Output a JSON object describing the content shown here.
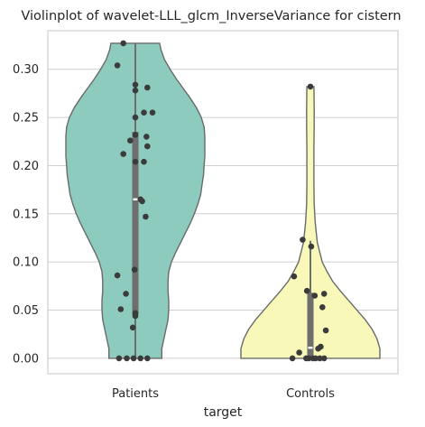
{
  "chart_data": {
    "type": "violin",
    "title": "Violinplot of wavelet-LLL_glcm_InverseVariance for cistern",
    "xlabel": "target",
    "ylabel": "",
    "ylim": [
      -0.016,
      0.34
    ],
    "yticks": [
      0.0,
      0.05,
      0.1,
      0.15,
      0.2,
      0.25,
      0.3
    ],
    "ytick_labels": [
      "0.00",
      "0.05",
      "0.10",
      "0.15",
      "0.20",
      "0.25",
      "0.30"
    ],
    "grid": "horizontal",
    "categories": [
      "Patients",
      "Controls"
    ],
    "colors": {
      "Patients": "#8ecbbf",
      "Controls": "#f8f8b8",
      "edge": "#6a6a6a",
      "box": "#6e6e6e",
      "points": "#3b3b3b",
      "grid": "#cfcfcf"
    },
    "groups": [
      {
        "name": "Patients",
        "min": 0.0,
        "q1": 0.045,
        "median": 0.165,
        "q3": 0.235,
        "max": 0.327,
        "violin_profile": [
          [
            0.0,
            0.38
          ],
          [
            0.01,
            0.38
          ],
          [
            0.02,
            0.41
          ],
          [
            0.03,
            0.44
          ],
          [
            0.04,
            0.47
          ],
          [
            0.05,
            0.48
          ],
          [
            0.06,
            0.48
          ],
          [
            0.07,
            0.47
          ],
          [
            0.08,
            0.47
          ],
          [
            0.09,
            0.48
          ],
          [
            0.1,
            0.52
          ],
          [
            0.11,
            0.58
          ],
          [
            0.12,
            0.65
          ],
          [
            0.13,
            0.72
          ],
          [
            0.14,
            0.79
          ],
          [
            0.15,
            0.85
          ],
          [
            0.16,
            0.9
          ],
          [
            0.17,
            0.94
          ],
          [
            0.18,
            0.96
          ],
          [
            0.19,
            0.98
          ],
          [
            0.2,
            0.99
          ],
          [
            0.21,
            1.0
          ],
          [
            0.22,
            1.0
          ],
          [
            0.23,
            1.0
          ],
          [
            0.24,
            0.99
          ],
          [
            0.25,
            0.95
          ],
          [
            0.26,
            0.88
          ],
          [
            0.27,
            0.79
          ],
          [
            0.28,
            0.69
          ],
          [
            0.29,
            0.59
          ],
          [
            0.3,
            0.5
          ],
          [
            0.31,
            0.42
          ],
          [
            0.32,
            0.37
          ],
          [
            0.327,
            0.35
          ]
        ],
        "points": [
          [
            -0.14,
            0.327
          ],
          [
            -0.21,
            0.304
          ],
          [
            0.0,
            0.284
          ],
          [
            0.0,
            0.278
          ],
          [
            0.14,
            0.281
          ],
          [
            0.1,
            0.255
          ],
          [
            0.2,
            0.255
          ],
          [
            0.0,
            0.25
          ],
          [
            0.13,
            0.23
          ],
          [
            -0.06,
            0.226
          ],
          [
            0.0,
            0.232
          ],
          [
            0.14,
            0.22
          ],
          [
            -0.14,
            0.212
          ],
          [
            0.0,
            0.204
          ],
          [
            0.1,
            0.204
          ],
          [
            0.06,
            0.165
          ],
          [
            0.08,
            0.163
          ],
          [
            0.12,
            0.147
          ],
          [
            -0.21,
            0.086
          ],
          [
            -0.01,
            0.092
          ],
          [
            -0.11,
            0.067
          ],
          [
            -0.17,
            0.051
          ],
          [
            0.0,
            0.047
          ],
          [
            0.0,
            0.044
          ],
          [
            -0.03,
            0.032
          ],
          [
            -0.19,
            0.0
          ],
          [
            -0.1,
            0.0
          ],
          [
            -0.02,
            0.0
          ],
          [
            0.06,
            0.0
          ],
          [
            0.14,
            0.0
          ]
        ]
      },
      {
        "name": "Controls",
        "min": 0.0,
        "q1": 0.0,
        "median": 0.011,
        "q3": 0.068,
        "max": 0.122,
        "violin_profile": [
          [
            0.0,
            1.0
          ],
          [
            0.01,
            1.0
          ],
          [
            0.02,
            0.96
          ],
          [
            0.03,
            0.89
          ],
          [
            0.04,
            0.79
          ],
          [
            0.05,
            0.67
          ],
          [
            0.06,
            0.55
          ],
          [
            0.07,
            0.43
          ],
          [
            0.08,
            0.32
          ],
          [
            0.09,
            0.24
          ],
          [
            0.1,
            0.17
          ],
          [
            0.12,
            0.1
          ],
          [
            0.14,
            0.07
          ],
          [
            0.16,
            0.055
          ],
          [
            0.18,
            0.05
          ],
          [
            0.2,
            0.05
          ],
          [
            0.22,
            0.05
          ],
          [
            0.24,
            0.055
          ],
          [
            0.26,
            0.055
          ],
          [
            0.282,
            0.05
          ]
        ],
        "points": [
          [
            0.0,
            0.282
          ],
          [
            -0.09,
            0.123
          ],
          [
            0.01,
            0.116
          ],
          [
            -0.19,
            0.085
          ],
          [
            -0.04,
            0.07
          ],
          [
            0.05,
            0.065
          ],
          [
            0.16,
            0.067
          ],
          [
            0.14,
            0.053
          ],
          [
            0.18,
            0.029
          ],
          [
            0.12,
            0.012
          ],
          [
            0.09,
            0.01
          ],
          [
            -0.13,
            0.006
          ],
          [
            -0.21,
            0.0
          ],
          [
            -0.05,
            0.0
          ],
          [
            -0.02,
            0.0
          ],
          [
            0.03,
            0.0
          ],
          [
            0.06,
            0.0
          ],
          [
            0.11,
            0.0
          ],
          [
            0.16,
            0.0
          ]
        ]
      }
    ]
  }
}
